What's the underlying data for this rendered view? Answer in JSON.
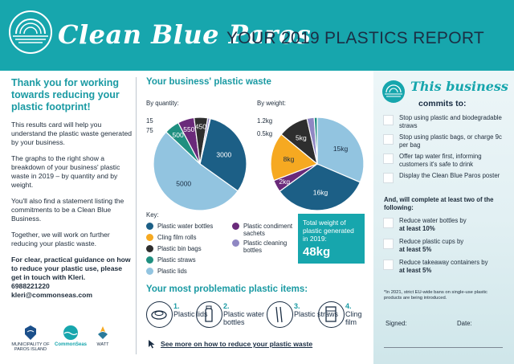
{
  "header": {
    "brand": "Clean Blue Paros",
    "report_title": "YOUR 2019 PLASTICS REPORT"
  },
  "left": {
    "thanks": "Thank you for working towards reducing your plastic footprint!",
    "p1": "This results card will help you understand the plastic waste generated by your business.",
    "p2": "The graphs to the right show a breakdown of your business' plastic waste in 2019 – by quantity and by weight.",
    "p3": "You'll also find a statement listing the commitments to be a Clean Blue Business.",
    "p4": "Together, we will work on further reducing your plastic waste.",
    "p5": "For clear, practical guidance on how to reduce your plastic use, please get in touch with Kleri.",
    "phone": "6988221220",
    "email": "kleri@commonseas.com"
  },
  "waste": {
    "title": "Your business' plastic waste",
    "by_quantity": "By quantity:",
    "by_weight": "By weight:",
    "key_title": "Key:",
    "key": [
      {
        "label": "Plastic water bottles",
        "color": "#1c5f86"
      },
      {
        "label": "Cling film rolls",
        "color": "#f6a921"
      },
      {
        "label": "Plastic bin bags",
        "color": "#2e2e2e"
      },
      {
        "label": "Plastic straws",
        "color": "#1f8f80"
      },
      {
        "label": "Plastic lids",
        "color": "#92c4e0"
      },
      {
        "label": "Plastic condiment sachets",
        "color": "#6a2a7a"
      },
      {
        "label": "Plastic cleaning bottles",
        "color": "#8f87c3"
      }
    ],
    "total_label": "Total weight of plastic generated in 2019:",
    "total_value": "48kg"
  },
  "chart_data": [
    {
      "type": "pie",
      "title": "By quantity:",
      "categories": [
        "Plastic water bottles",
        "Plastic lids",
        "Plastic straws",
        "Plastic condiment sachets",
        "Plastic bin bags",
        "Plastic cleaning bottles",
        "Cling film rolls"
      ],
      "values": [
        3000,
        5000,
        500,
        550,
        450,
        75,
        15
      ],
      "labels": [
        "3000",
        "5000",
        "500",
        "550",
        "450",
        "75",
        "15"
      ],
      "colors": [
        "#1c5f86",
        "#92c4e0",
        "#1f8f80",
        "#6a2a7a",
        "#2e2e2e",
        "#8f87c3",
        "#f6a921"
      ]
    },
    {
      "type": "pie",
      "title": "By weight:",
      "categories": [
        "Plastic lids",
        "Plastic water bottles",
        "Plastic condiment sachets",
        "Cling film rolls",
        "Plastic bin bags",
        "Plastic cleaning bottles",
        "Plastic straws"
      ],
      "values": [
        15,
        16,
        2,
        8,
        5,
        1.2,
        0.5
      ],
      "labels": [
        "15kg",
        "16kg",
        "2kg",
        "8kg",
        "5kg",
        "1.2kg",
        "0.5kg"
      ],
      "colors": [
        "#92c4e0",
        "#1c5f86",
        "#6a2a7a",
        "#f6a921",
        "#2e2e2e",
        "#8f87c3",
        "#1f8f80"
      ]
    }
  ],
  "problems": {
    "title": "Your most problematic plastic items:",
    "items": [
      {
        "num": "1.",
        "label": "Plastic lids"
      },
      {
        "num": "2.",
        "label": "Plastic water bottles"
      },
      {
        "num": "3.",
        "label": "Plastic straws"
      },
      {
        "num": "4.",
        "label": "Cling film"
      }
    ],
    "more_link": "See more on how to reduce your plastic waste"
  },
  "footer_logos": {
    "paros": "MUNICIPALITY OF PAROS ISLAND",
    "commonseas": "CommonSeas",
    "watt": "WATT"
  },
  "commitments": {
    "heading": "This business",
    "sub": "commits to:",
    "items": [
      "Stop using plastic and biodegradable straws",
      "Stop using plastic bags, or charge 9c per bag",
      "Offer tap water first, informing customers it's safe to drink",
      "Display the Clean Blue Paros poster"
    ],
    "also": "And, will complete at least two of the following:",
    "optional": [
      {
        "text": "Reduce water bottles by",
        "bold": "at least 10%"
      },
      {
        "text": "Reduce plastic cups by",
        "bold": "at least 5%"
      },
      {
        "text": "Reduce takeaway containers by",
        "bold": "at least 5%"
      }
    ],
    "footnote": "*In 2021, strict EU-wide bans on single-use plastic products are being introduced.",
    "signed": "Signed:",
    "date": "Date:"
  }
}
